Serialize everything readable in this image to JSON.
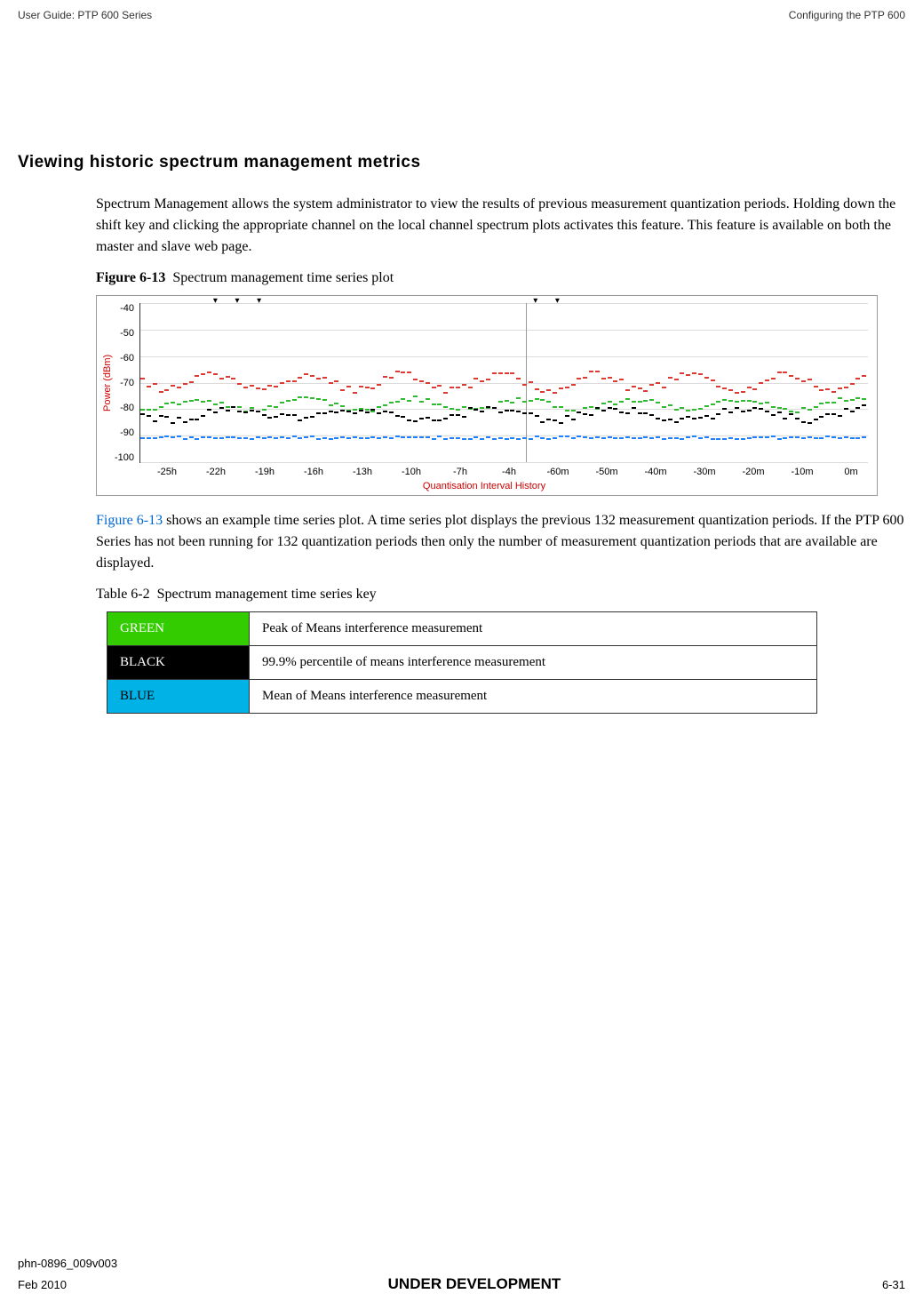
{
  "header": {
    "left": "User Guide: PTP 600 Series",
    "right": "Configuring the PTP 600"
  },
  "section": {
    "heading": "Viewing historic spectrum management metrics",
    "paragraph1": "Spectrum Management allows the system administrator to view the results of previous measurement quantization periods. Holding down the shift key and clicking the appropriate channel on the local channel spectrum plots activates this feature. This feature is available on both the master and slave web page.",
    "figure_label_bold": "Figure 6-13",
    "figure_label_text": "Spectrum management time series plot",
    "paragraph2_link": "Figure 6-13",
    "paragraph2_rest": " shows an example time series plot. A time series plot displays the previous 132 measurement quantization periods. If the PTP 600 Series has not been running for 132 quantization periods then only the number of measurement quantization periods that are available are displayed.",
    "table_label_bold": "Table 6-2",
    "table_label_text": "Spectrum management time series key"
  },
  "chart": {
    "y_label": "Power (dBm)",
    "y_ticks": [
      "-40",
      "-50",
      "-60",
      "-70",
      "-80",
      "-90",
      "-100"
    ],
    "x_ticks": [
      "-25h",
      "-22h",
      "-19h",
      "-16h",
      "-13h",
      "-10h",
      "-7h",
      "-4h",
      "-60m",
      "-50m",
      "-40m",
      "-30m",
      "-20m",
      "-10m",
      "0m"
    ],
    "x_label": "Quantisation Interval History",
    "colors": {
      "red": "#de3a33",
      "green": "#2fbb2f",
      "black": "#000000",
      "blue": "#2080ff",
      "grid": "#dcdcdc"
    }
  },
  "table": {
    "rows": [
      {
        "label": "GREEN",
        "color": "#33cc00",
        "text_color": "#ffffff",
        "desc": "Peak of Means interference measurement"
      },
      {
        "label": "BLACK",
        "color": "#000000",
        "text_color": "#ffffff",
        "desc": "99.9% percentile of means interference measurement"
      },
      {
        "label": "BLUE",
        "color": "#00b2e6",
        "text_color": "#000000",
        "desc": "Mean of Means interference measurement"
      }
    ]
  },
  "footer": {
    "doc_id": "phn-0896_009v003",
    "date": "Feb 2010",
    "status": "UNDER DEVELOPMENT",
    "page": "6-31"
  }
}
